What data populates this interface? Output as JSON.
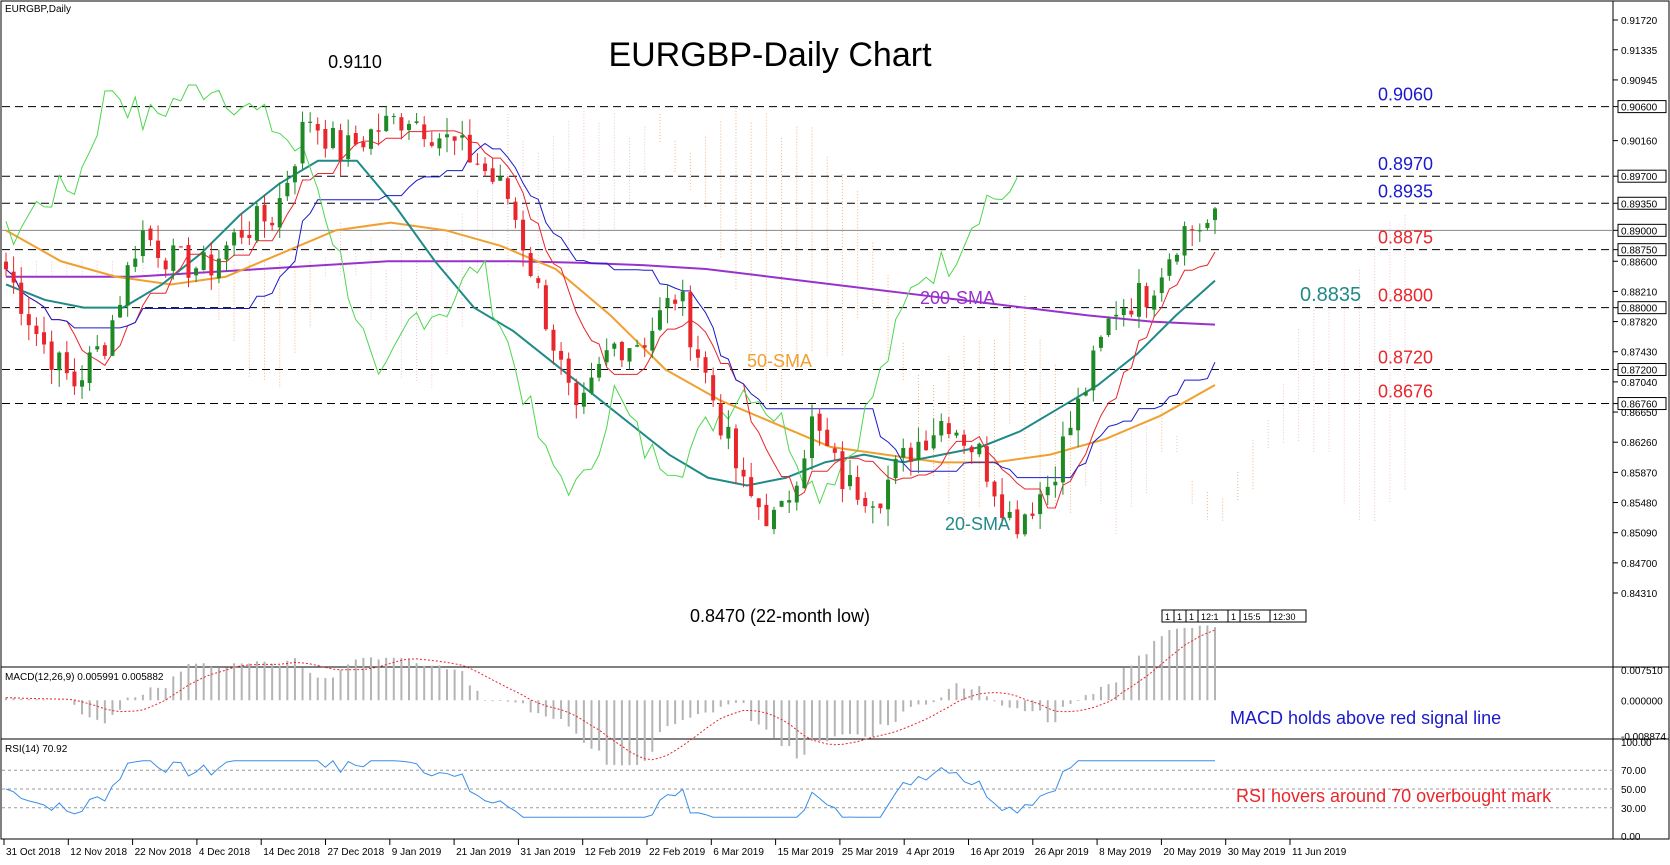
{
  "chart_data": [
    {
      "type": "candlestick",
      "symbol_label": "EURGBP,Daily",
      "title": "EURGBP-Daily Chart",
      "price_axis_ticks": [
        "0.91720",
        "0.91335",
        "0.90945",
        "0.90600",
        "0.90160",
        "0.89700",
        "0.89350",
        "0.89000",
        "0.88750",
        "0.88600",
        "0.88210",
        "0.88000",
        "0.87820",
        "0.87430",
        "0.87200",
        "0.87040",
        "0.86760",
        "0.86650",
        "0.86260",
        "0.85870",
        "0.85480",
        "0.85090",
        "0.84700",
        "0.84310"
      ],
      "price_labels": {
        "r9060": "0.90600",
        "r8970": "0.89700",
        "r8935": "0.89350",
        "r8900": "0.89000",
        "r8875": "0.88750",
        "r8800": "0.88000",
        "r8720": "0.87200",
        "r8676": "0.86760"
      },
      "levels": [
        {
          "id": "r9060",
          "value": 0.906,
          "label": "0.9060",
          "color": "#1a1acd",
          "dashed": true
        },
        {
          "id": "r8970",
          "value": 0.897,
          "label": "0.8970",
          "color": "#1a1acd",
          "dashed": true
        },
        {
          "id": "r8935",
          "value": 0.8935,
          "label": "0.8935",
          "color": "#1a1acd",
          "dashed": true
        },
        {
          "id": "r8900",
          "value": 0.89,
          "label": "",
          "color": "#888888",
          "dashed": false
        },
        {
          "id": "r8875",
          "value": 0.8875,
          "label": "0.8875",
          "color": "#e8262b",
          "dashed": true
        },
        {
          "id": "r8800",
          "value": 0.88,
          "label": "0.8800",
          "color": "#e8262b",
          "dashed": true
        },
        {
          "id": "r8720",
          "value": 0.872,
          "label": "0.8720",
          "color": "#e8262b",
          "dashed": true
        },
        {
          "id": "r8676",
          "value": 0.8676,
          "label": "0.8676",
          "color": "#e8262b",
          "dashed": true
        }
      ],
      "annotations": {
        "high": "0.9110",
        "low": "0.8470 (22-month low)",
        "sma200": "200-SMA",
        "sma50": "50-SMA",
        "sma20": "20-SMA",
        "sma20_value": "0.8835"
      },
      "date_labels": [
        "31 Oct 2018",
        "12 Nov 2018",
        "22 Nov 2018",
        "4 Dec 2018",
        "14 Dec 2018",
        "27 Dec 2018",
        "9 Jan 2019",
        "21 Jan 2019",
        "31 Jan 2019",
        "12 Feb 2019",
        "22 Feb 2019",
        "6 Mar 2019",
        "15 Mar 2019",
        "25 Mar 2019",
        "4 Apr 2019",
        "16 Apr 2019",
        "26 Apr 2019",
        "8 May 2019",
        "20 May 2019",
        "30 May 2019",
        "11 Jun 2019"
      ],
      "ohlc_anchors": [
        [
          0.89,
          0.8925,
          0.884,
          0.885
        ],
        [
          0.885,
          0.887,
          0.874,
          0.876
        ],
        [
          0.876,
          0.877,
          0.868,
          0.87
        ],
        [
          0.87,
          0.879,
          0.865,
          0.876
        ],
        [
          0.876,
          0.893,
          0.873,
          0.89
        ],
        [
          0.89,
          0.8935,
          0.884,
          0.886
        ],
        [
          0.886,
          0.89,
          0.881,
          0.885
        ],
        [
          0.885,
          0.893,
          0.882,
          0.89
        ],
        [
          0.89,
          0.895,
          0.886,
          0.892
        ],
        [
          0.892,
          0.908,
          0.89,
          0.905
        ],
        [
          0.905,
          0.907,
          0.898,
          0.9
        ],
        [
          0.9,
          0.905,
          0.897,
          0.903
        ],
        [
          0.903,
          0.907,
          0.899,
          0.905
        ],
        [
          0.905,
          0.911,
          0.9,
          0.902
        ],
        [
          0.902,
          0.906,
          0.896,
          0.899
        ],
        [
          0.899,
          0.906,
          0.893,
          0.894
        ],
        [
          0.894,
          0.895,
          0.878,
          0.88
        ],
        [
          0.88,
          0.882,
          0.862,
          0.865
        ],
        [
          0.865,
          0.878,
          0.863,
          0.875
        ],
        [
          0.875,
          0.879,
          0.872,
          0.876
        ],
        [
          0.876,
          0.884,
          0.874,
          0.882
        ],
        [
          0.882,
          0.886,
          0.866,
          0.869
        ],
        [
          0.869,
          0.872,
          0.852,
          0.856
        ],
        [
          0.856,
          0.862,
          0.847,
          0.852
        ],
        [
          0.852,
          0.872,
          0.85,
          0.865
        ],
        [
          0.865,
          0.867,
          0.855,
          0.857
        ],
        [
          0.857,
          0.862,
          0.852,
          0.856
        ],
        [
          0.856,
          0.865,
          0.855,
          0.862
        ],
        [
          0.862,
          0.868,
          0.86,
          0.866
        ],
        [
          0.866,
          0.868,
          0.86,
          0.861
        ],
        [
          0.861,
          0.862,
          0.849,
          0.852
        ],
        [
          0.852,
          0.859,
          0.85,
          0.857
        ],
        [
          0.857,
          0.87,
          0.856,
          0.868
        ],
        [
          0.868,
          0.882,
          0.867,
          0.88
        ],
        [
          0.88,
          0.886,
          0.876,
          0.882
        ],
        [
          0.882,
          0.893,
          0.88,
          0.89
        ],
        [
          0.89,
          0.893,
          0.887,
          0.891
        ]
      ],
      "sma20": [
        0.883,
        0.881,
        0.88,
        0.88,
        0.883,
        0.887,
        0.892,
        0.896,
        0.899,
        0.899,
        0.893,
        0.886,
        0.88,
        0.877,
        0.873,
        0.869,
        0.865,
        0.861,
        0.858,
        0.857,
        0.858,
        0.86,
        0.861,
        0.86,
        0.861,
        0.862,
        0.864,
        0.867,
        0.87,
        0.874,
        0.879,
        0.8835
      ],
      "sma50": [
        0.89,
        0.886,
        0.884,
        0.883,
        0.884,
        0.887,
        0.89,
        0.891,
        0.89,
        0.888,
        0.885,
        0.879,
        0.872,
        0.868,
        0.865,
        0.862,
        0.861,
        0.86,
        0.86,
        0.861,
        0.863,
        0.866,
        0.87
      ],
      "sma200": [
        0.884,
        0.884,
        0.884,
        0.8845,
        0.885,
        0.8855,
        0.886,
        0.886,
        0.886,
        0.8858,
        0.8855,
        0.885,
        0.884,
        0.883,
        0.882,
        0.881,
        0.88,
        0.879,
        0.8782,
        0.8778
      ],
      "grid": false
    },
    {
      "type": "line",
      "label": "MACD(12,26,9) 0.005991 0.005882",
      "ticks": [
        "0.007510",
        "0.000000",
        "-0.008874"
      ],
      "annotation": "MACD holds above red signal line"
    },
    {
      "type": "line",
      "label": "RSI(14) 70.92",
      "ticks": [
        "100.00",
        "70.00",
        "50.00",
        "30.00",
        "0.00"
      ],
      "levels": [
        70,
        50,
        30
      ],
      "annotation": "RSI hovers around 70 overbought mark"
    }
  ],
  "toolbar": {
    "buttons": [
      "1",
      "1",
      "1",
      "12:1",
      "1",
      "15:5",
      "12:30"
    ]
  },
  "colors": {
    "bull": "#1f8a25",
    "bear": "#e8262b",
    "sma20": "#1f8a88",
    "sma50": "#f0a030",
    "sma200": "#9932cc",
    "kijun": "#1a1acd",
    "tenkan": "#e8262b",
    "chikou": "#4fd64f",
    "cloud": "#f0a060",
    "macd_hist": "#b4b4b4",
    "macd_signal": "#e8262b",
    "rsi": "#3a8ee6"
  }
}
